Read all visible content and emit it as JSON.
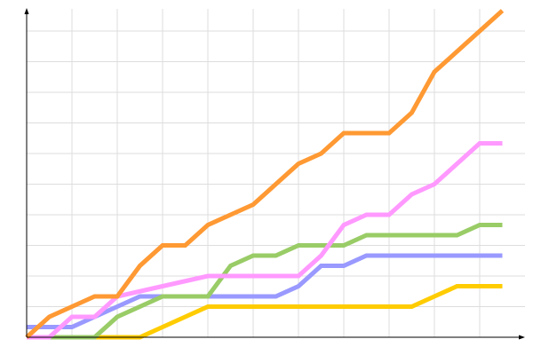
{
  "chart_data": {
    "type": "line",
    "title": "",
    "xlabel": "",
    "ylabel": "",
    "x": [
      0,
      1,
      2,
      3,
      4,
      5,
      6,
      7,
      8,
      9,
      10,
      11,
      12,
      13,
      14,
      15,
      16,
      17,
      18,
      19,
      20,
      21
    ],
    "xlim": [
      0,
      22
    ],
    "ylim": [
      0,
      32
    ],
    "grid": true,
    "x_grid_step": 2,
    "y_grid_step": 3,
    "legend": "none",
    "series": [
      {
        "color": "#ffcc00",
        "values": [
          0,
          0,
          0,
          0,
          0,
          0,
          1,
          2,
          3,
          3,
          3,
          3,
          3,
          3,
          3,
          3,
          3,
          3,
          4,
          5,
          5,
          5
        ]
      },
      {
        "color": "#9999ff",
        "values": [
          1,
          1,
          1,
          2,
          3,
          4,
          4,
          4,
          4,
          4,
          4,
          4,
          5,
          7,
          7,
          8,
          8,
          8,
          8,
          8,
          8,
          8
        ]
      },
      {
        "color": "#99cc66",
        "values": [
          0,
          0,
          0,
          0,
          2,
          3,
          4,
          4,
          4,
          7,
          8,
          8,
          9,
          9,
          9,
          10,
          10,
          10,
          10,
          10,
          11,
          11
        ]
      },
      {
        "color": "#ff99ff",
        "values": [
          0,
          0,
          2,
          2,
          4,
          4.5,
          5,
          5.5,
          6,
          6,
          6,
          6,
          6,
          8,
          11,
          12,
          12,
          14,
          15,
          17,
          19,
          19
        ]
      },
      {
        "color": "#ff9933",
        "values": [
          0,
          2,
          3,
          4,
          4,
          7,
          9,
          9,
          11,
          12,
          13,
          15,
          17,
          18,
          20,
          20,
          20,
          22,
          26,
          28,
          30,
          32
        ]
      }
    ]
  }
}
